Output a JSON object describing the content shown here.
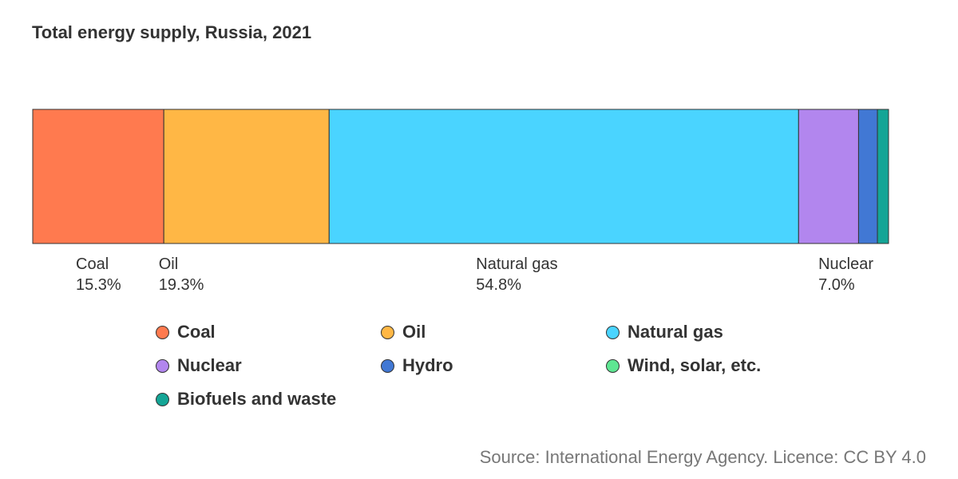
{
  "chart_data": {
    "type": "bar",
    "orientation": "horizontal-stacked",
    "title": "Total energy supply, Russia, 2021",
    "unit": "%",
    "categories": [
      "Coal",
      "Oil",
      "Natural gas",
      "Nuclear",
      "Hydro",
      "Wind, solar, etc.",
      "Biofuels and waste"
    ],
    "values": [
      15.3,
      19.3,
      54.8,
      7.0,
      2.2,
      0.0,
      1.3
    ],
    "value_labels": [
      "15.3%",
      "19.3%",
      "54.8%",
      "7.0%",
      "",
      "",
      ""
    ],
    "colors": [
      "#FF7A4F",
      "#FFB745",
      "#4AD4FF",
      "#B286EE",
      "#4178D4",
      "#5EE692",
      "#14A596"
    ],
    "legend_position": "bottom",
    "grid": false
  },
  "source": "Source: International Energy Agency. Licence: CC BY 4.0"
}
